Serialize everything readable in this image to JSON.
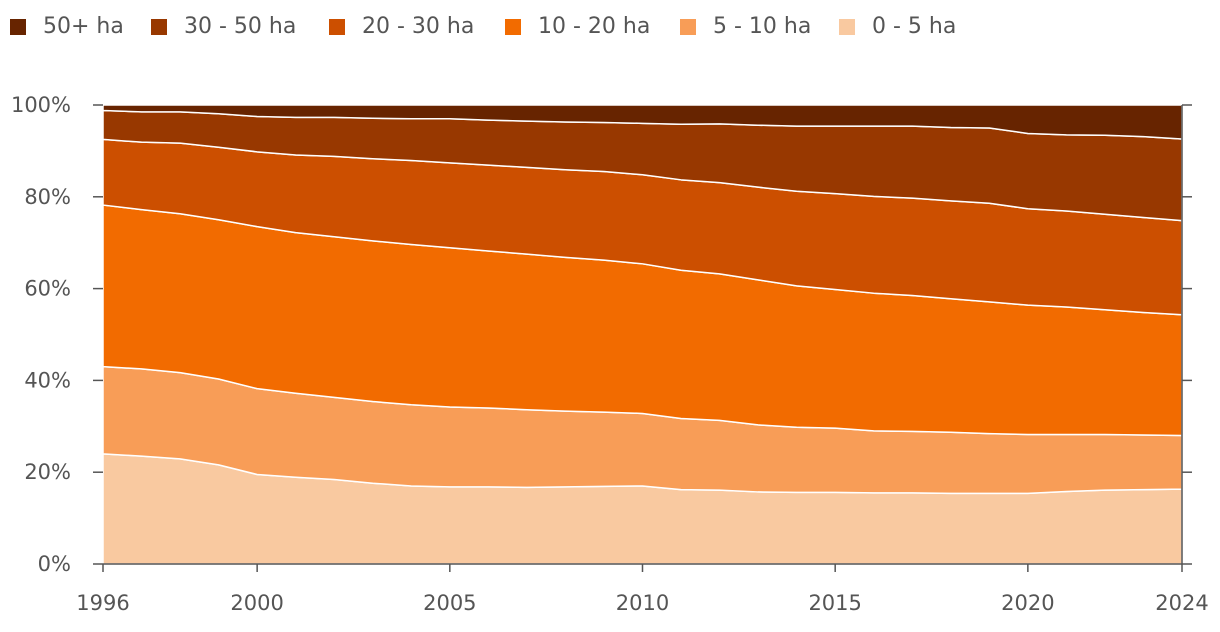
{
  "chart_data": {
    "type": "area",
    "stacked": true,
    "percent": true,
    "title": "",
    "xlabel": "",
    "ylabel": "",
    "ylim": [
      0,
      100
    ],
    "legend_position": "top-left",
    "x": [
      1996,
      1997,
      1998,
      1999,
      2000,
      2001,
      2002,
      2003,
      2004,
      2005,
      2006,
      2007,
      2008,
      2009,
      2010,
      2011,
      2012,
      2013,
      2014,
      2015,
      2016,
      2017,
      2018,
      2019,
      2020,
      2021,
      2022,
      2023,
      2024
    ],
    "x_ticks": [
      1996,
      2000,
      2005,
      2010,
      2015,
      2020,
      2024
    ],
    "x_tick_labels": [
      "1996",
      "2000",
      "2005",
      "2010",
      "2015",
      "2020",
      "2024"
    ],
    "y_ticks": [
      0,
      20,
      40,
      60,
      80,
      100
    ],
    "y_tick_labels": [
      "0%",
      "20%",
      "40%",
      "60%",
      "80%",
      "100%"
    ],
    "series": [
      {
        "name": "0 - 5 ha",
        "color": "#f9c9a0",
        "values": [
          24.0,
          23.5,
          22.9,
          21.6,
          19.5,
          18.9,
          18.4,
          17.6,
          17.0,
          16.8,
          16.8,
          16.7,
          16.8,
          16.9,
          17.0,
          16.2,
          16.1,
          15.7,
          15.6,
          15.6,
          15.5,
          15.5,
          15.4,
          15.4,
          15.4,
          15.8,
          16.1,
          16.2,
          16.3
        ]
      },
      {
        "name": "5 - 10 ha",
        "color": "#f89d57",
        "values": [
          19.0,
          19.0,
          18.8,
          18.7,
          18.7,
          18.3,
          17.9,
          17.8,
          17.7,
          17.4,
          17.2,
          16.9,
          16.5,
          16.2,
          15.8,
          15.5,
          15.2,
          14.6,
          14.2,
          14.0,
          13.5,
          13.4,
          13.3,
          13.0,
          12.8,
          12.4,
          12.1,
          11.9,
          11.7
        ]
      },
      {
        "name": "10 - 20 ha",
        "color": "#f26b00",
        "values": [
          35.2,
          34.7,
          34.6,
          34.7,
          35.3,
          35.0,
          35.0,
          35.0,
          34.9,
          34.7,
          34.2,
          33.9,
          33.5,
          33.1,
          32.6,
          32.3,
          31.9,
          31.6,
          30.8,
          30.2,
          30.0,
          29.6,
          29.1,
          28.7,
          28.2,
          27.8,
          27.2,
          26.7,
          26.3
        ]
      },
      {
        "name": "20 - 30 ha",
        "color": "#cc4f00",
        "values": [
          14.3,
          14.7,
          15.4,
          15.8,
          16.3,
          16.9,
          17.5,
          17.9,
          18.3,
          18.5,
          18.7,
          18.9,
          19.1,
          19.3,
          19.4,
          19.7,
          19.9,
          20.2,
          20.6,
          20.9,
          21.1,
          21.2,
          21.3,
          21.5,
          21.0,
          20.9,
          20.8,
          20.7,
          20.5
        ]
      },
      {
        "name": "30 - 50 ha",
        "color": "#983800",
        "values": [
          6.3,
          6.6,
          6.8,
          7.3,
          7.7,
          8.2,
          8.5,
          8.8,
          9.1,
          9.6,
          9.8,
          10.1,
          10.4,
          10.7,
          11.2,
          12.1,
          12.8,
          13.5,
          14.2,
          14.7,
          15.3,
          15.7,
          16.0,
          16.4,
          16.4,
          16.6,
          17.2,
          17.6,
          17.8
        ]
      },
      {
        "name": "50+ ha",
        "color": "#672400",
        "values": [
          1.2,
          1.5,
          1.5,
          1.9,
          2.0,
          2.3,
          2.7,
          2.9,
          3.0,
          3.0,
          3.3,
          3.5,
          3.7,
          3.8,
          4.0,
          4.2,
          4.1,
          4.4,
          4.6,
          4.6,
          4.6,
          4.6,
          4.9,
          5.0,
          6.2,
          6.5,
          6.6,
          6.9,
          7.4
        ]
      }
    ],
    "legend_order": [
      "50+ ha",
      "30 - 50 ha",
      "20 - 30 ha",
      "10 - 20 ha",
      "5 - 10 ha",
      "0 - 5 ha"
    ]
  }
}
